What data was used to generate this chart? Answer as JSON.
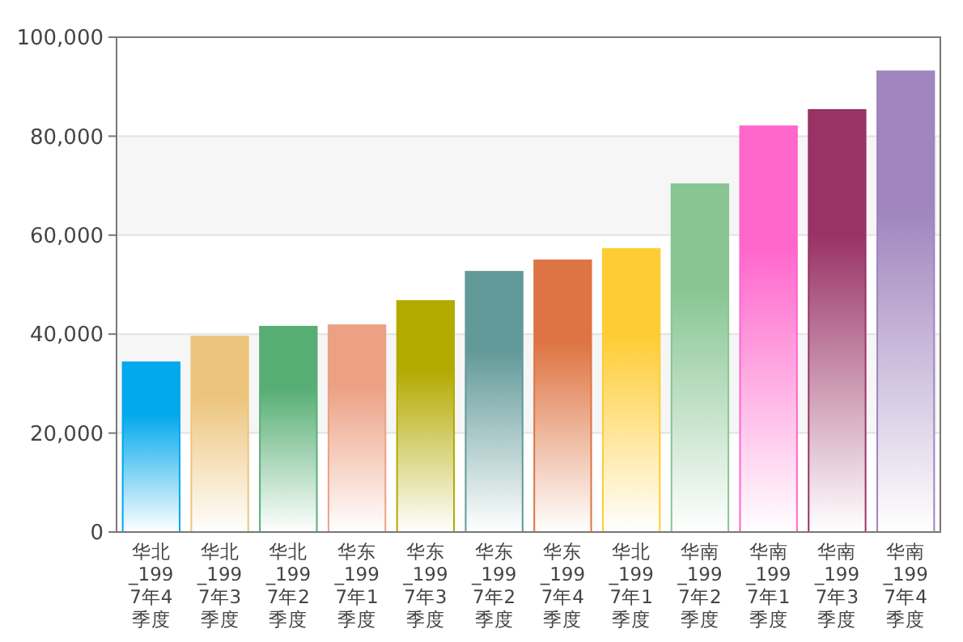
{
  "chart_data": {
    "type": "bar",
    "categories": [
      "华北_1997年4季度",
      "华北_1997年3季度",
      "华北_1997年2季度",
      "华东_1997年1季度",
      "华东_1997年3季度",
      "华东_1997年2季度",
      "华东_1997年4季度",
      "华北_1997年1季度",
      "华南_1997年2季度",
      "华南_1997年1季度",
      "华南_1997年3季度",
      "华南_1997年4季度"
    ],
    "values": [
      34300,
      39500,
      41500,
      41800,
      46700,
      52600,
      54900,
      57200,
      70300,
      82000,
      85300,
      93100
    ],
    "colors": [
      "#00a8ec",
      "#ecc47c",
      "#57ae74",
      "#eca184",
      "#b3aa00",
      "#629999",
      "#de7443",
      "#ffcc33",
      "#88c593",
      "#ff66cc",
      "#993366",
      "#a085be"
    ],
    "ylim": [
      0,
      100000
    ],
    "yticks": [
      {
        "value": 0,
        "label": "0"
      },
      {
        "value": 20000,
        "label": "20,000"
      },
      {
        "value": 40000,
        "label": "40,000"
      },
      {
        "value": 60000,
        "label": "60,000"
      },
      {
        "value": 80000,
        "label": "80,000"
      },
      {
        "value": 100000,
        "label": "100,000"
      }
    ],
    "grid": "y"
  }
}
